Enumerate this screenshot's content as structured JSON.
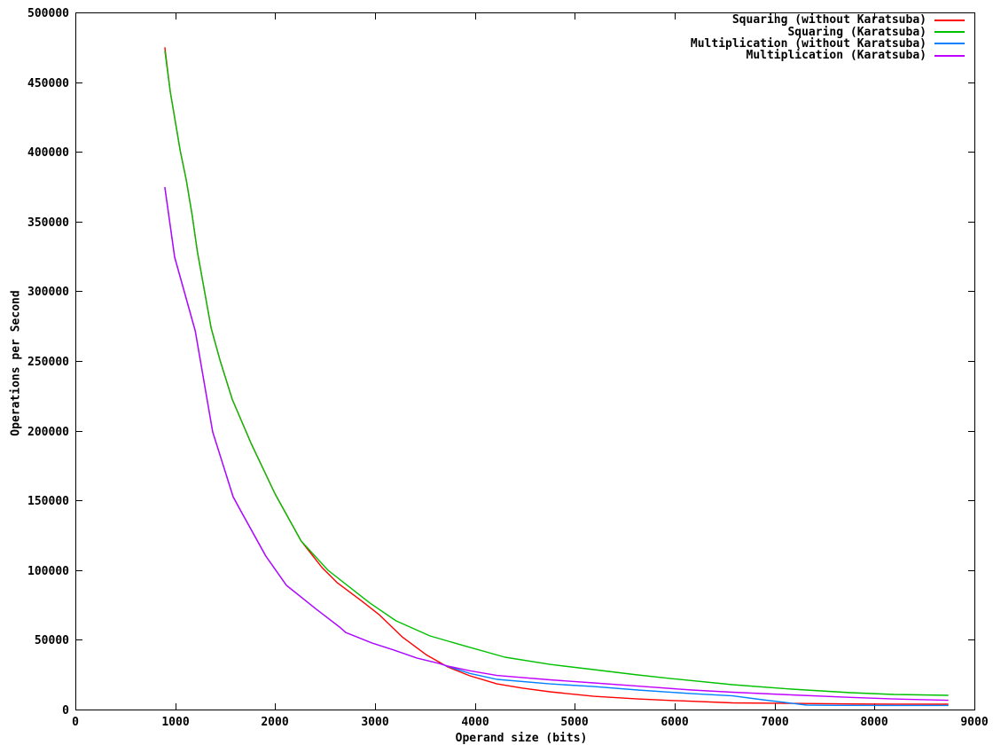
{
  "chart_data": {
    "type": "line",
    "title": "",
    "xlabel": "Operand size (bits)",
    "ylabel": "Operations per Second",
    "xlim": [
      0,
      9000
    ],
    "ylim": [
      0,
      500000
    ],
    "x_ticks": [
      0,
      1000,
      2000,
      3000,
      4000,
      5000,
      6000,
      7000,
      8000,
      9000
    ],
    "y_ticks": [
      0,
      50000,
      100000,
      150000,
      200000,
      250000,
      300000,
      350000,
      400000,
      450000,
      500000
    ],
    "grid": false,
    "legend_position": "top-right-inside",
    "axis_color": "#000000",
    "background_color": "#ffffff",
    "series": [
      {
        "name": "Squaring (without Karatsuba)",
        "color": "#ff0000",
        "points": [
          [
            896,
            475000
          ],
          [
            950,
            443300
          ],
          [
            1050,
            400700
          ],
          [
            1110,
            379800
          ],
          [
            1170,
            354300
          ],
          [
            1220,
            328900
          ],
          [
            1360,
            273500
          ],
          [
            1450,
            250000
          ],
          [
            1570,
            222600
          ],
          [
            1760,
            190800
          ],
          [
            2000,
            154600
          ],
          [
            2260,
            120900
          ],
          [
            2470,
            101800
          ],
          [
            2620,
            91000
          ],
          [
            2860,
            78200
          ],
          [
            3040,
            68100
          ],
          [
            3270,
            52200
          ],
          [
            3510,
            39400
          ],
          [
            3730,
            30500
          ],
          [
            3950,
            24200
          ],
          [
            4220,
            18400
          ],
          [
            4480,
            15300
          ],
          [
            4750,
            12700
          ],
          [
            5190,
            9500
          ],
          [
            5630,
            7600
          ],
          [
            5990,
            6400
          ],
          [
            6580,
            4800
          ],
          [
            7170,
            4400
          ],
          [
            7760,
            4000
          ],
          [
            8190,
            3900
          ],
          [
            8740,
            3800
          ]
        ]
      },
      {
        "name": "Squaring (Karatsuba)",
        "color": "#00c000",
        "points": [
          [
            896,
            472600
          ],
          [
            950,
            443300
          ],
          [
            1050,
            400700
          ],
          [
            1110,
            379800
          ],
          [
            1170,
            354300
          ],
          [
            1220,
            328900
          ],
          [
            1360,
            273500
          ],
          [
            1450,
            250000
          ],
          [
            1570,
            222600
          ],
          [
            1760,
            190800
          ],
          [
            2000,
            154600
          ],
          [
            2260,
            120900
          ],
          [
            2530,
            99900
          ],
          [
            2950,
            76300
          ],
          [
            3210,
            63600
          ],
          [
            3550,
            52800
          ],
          [
            3860,
            46400
          ],
          [
            4300,
            37500
          ],
          [
            4750,
            32400
          ],
          [
            5190,
            28600
          ],
          [
            5630,
            24800
          ],
          [
            5990,
            22000
          ],
          [
            6580,
            17800
          ],
          [
            7170,
            14600
          ],
          [
            7760,
            12100
          ],
          [
            8190,
            10800
          ],
          [
            8740,
            10200
          ]
        ]
      },
      {
        "name": "Multiplication (without Karatsuba)",
        "color": "#0080ff",
        "points": [
          [
            896,
            374700
          ],
          [
            994,
            324400
          ],
          [
            1200,
            271600
          ],
          [
            1375,
            199100
          ],
          [
            1579,
            152700
          ],
          [
            1641,
            144400
          ],
          [
            1907,
            110000
          ],
          [
            2112,
            89100
          ],
          [
            2413,
            71900
          ],
          [
            2644,
            59200
          ],
          [
            2706,
            55300
          ],
          [
            2970,
            47700
          ],
          [
            3190,
            42600
          ],
          [
            3420,
            36900
          ],
          [
            3640,
            33100
          ],
          [
            3730,
            31000
          ],
          [
            3950,
            25900
          ],
          [
            4220,
            21600
          ],
          [
            4750,
            18400
          ],
          [
            5190,
            16500
          ],
          [
            5630,
            14000
          ],
          [
            6170,
            11400
          ],
          [
            6580,
            9800
          ],
          [
            6880,
            7000
          ],
          [
            7170,
            4500
          ],
          [
            7320,
            3200
          ],
          [
            7600,
            3000
          ],
          [
            8190,
            2900
          ],
          [
            8740,
            2900
          ]
        ]
      },
      {
        "name": "Multiplication (Karatsuba)",
        "color": "#c000ff",
        "points": [
          [
            896,
            374700
          ],
          [
            994,
            324400
          ],
          [
            1200,
            271600
          ],
          [
            1375,
            199100
          ],
          [
            1579,
            152700
          ],
          [
            1641,
            144400
          ],
          [
            1907,
            110000
          ],
          [
            2112,
            89100
          ],
          [
            2413,
            71900
          ],
          [
            2644,
            59200
          ],
          [
            2706,
            55300
          ],
          [
            2970,
            47700
          ],
          [
            3190,
            42600
          ],
          [
            3420,
            36900
          ],
          [
            3640,
            33100
          ],
          [
            3730,
            31200
          ],
          [
            3950,
            27800
          ],
          [
            4220,
            24400
          ],
          [
            4750,
            21300
          ],
          [
            5190,
            19100
          ],
          [
            5630,
            16800
          ],
          [
            6170,
            14000
          ],
          [
            6580,
            12400
          ],
          [
            7170,
            10500
          ],
          [
            7760,
            8700
          ],
          [
            8190,
            7600
          ],
          [
            8740,
            6600
          ]
        ]
      }
    ]
  }
}
